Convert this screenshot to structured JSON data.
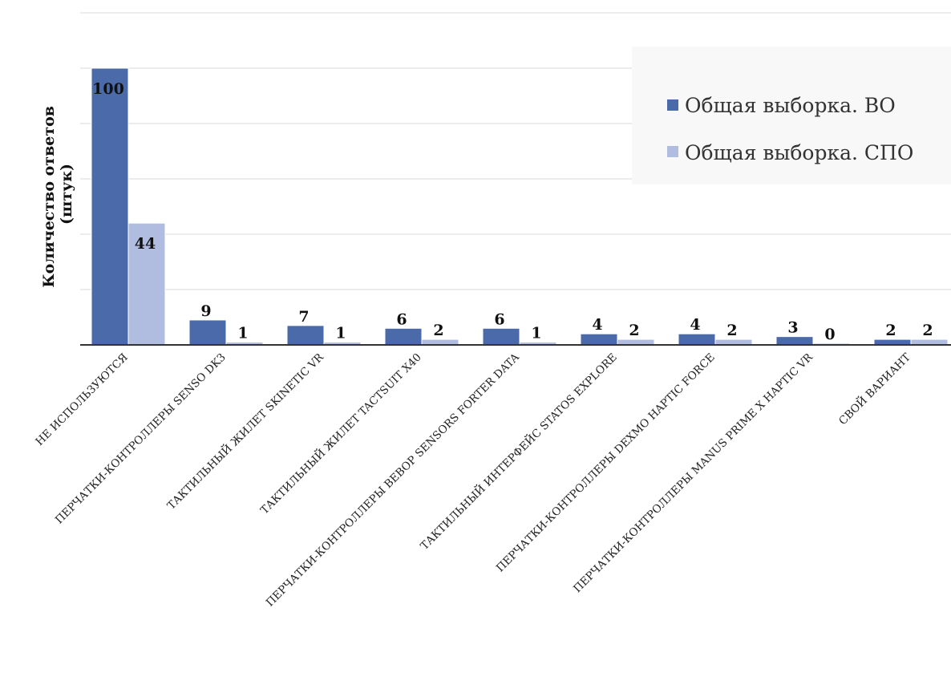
{
  "chart_data": {
    "type": "bar",
    "title": "",
    "ylabel": "Количество ответов (штук)",
    "ylabel_lines": [
      "Количество ответов",
      "(штук)"
    ],
    "xlabel": "",
    "ylim": [
      0,
      120
    ],
    "ytick_step": 20,
    "y_tick_labels_shown": false,
    "grid": true,
    "legend_position": "top-right",
    "categories": [
      "НЕ ИСПОЛЬЗУЮТСЯ",
      "ПЕРЧАТКИ-КОНТРОЛЛЕРЫ SENSO DK3",
      "ТАКТИЛЬНЫЙ ЖИЛЕТ SKINETIC VR",
      "ТАКТИЛЬНЫЙ ЖИЛЕТ TACTSUIT X40",
      "ПЕРЧАТКИ-КОНТРОЛЛЕРЫ BEBOP SENSORS  FORTER DATA",
      "ТАКТИЛЬНЫЙ ИНТЕРФЕЙС STATOS EXPLORE",
      "ПЕРЧАТКИ-КОНТРОЛЛЕРЫ DEXMO HAPTIC FORCE",
      "ПЕРЧАТКИ-КОНТРОЛЛЕРЫ MANUS PRIME X HAPTIC VR",
      "СВОЙ ВАРИАНТ"
    ],
    "series": [
      {
        "name": "Общая выборка. ВО",
        "color": "#4a6aaa",
        "values": [
          100,
          9,
          7,
          6,
          6,
          4,
          4,
          3,
          2
        ]
      },
      {
        "name": "Общая выборка. СПО",
        "color": "#b0bde0",
        "values": [
          44,
          1,
          1,
          2,
          1,
          2,
          2,
          0,
          2
        ]
      }
    ]
  }
}
